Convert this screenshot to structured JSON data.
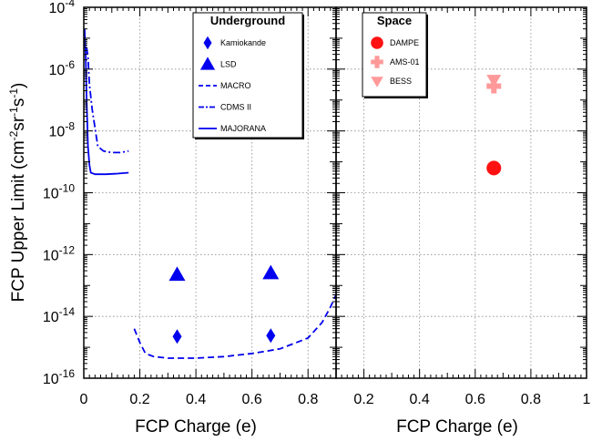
{
  "chart_data": {
    "type": "scatter",
    "ylabel_main": "FCP Upper Limit (cm",
    "ylabel_sup1": "-2",
    "ylabel_mid1": "sr",
    "ylabel_sup2": "-1",
    "ylabel_mid2": "s",
    "ylabel_sup3": "-1",
    "ylabel_end": ")",
    "y_log": true,
    "ylim_exp": [
      -16,
      -4
    ],
    "y_tick_base": "10",
    "y_tick_exponents": [
      "-4",
      "-6",
      "-8",
      "-10",
      "-12",
      "-14",
      "-16"
    ],
    "grid": true,
    "panels": [
      {
        "xlabel": "FCP Charge (e)",
        "xlim": [
          0,
          0.9
        ],
        "x_tick_labels": [
          "0",
          "0.2",
          "0.4",
          "0.6",
          "0.8"
        ],
        "legend": {
          "title": "Underground",
          "position": "top-center",
          "entries": [
            {
              "label": "Kamiokande",
              "marker": "diamond",
              "color": "#0000ee"
            },
            {
              "label": "LSD",
              "marker": "triangle-up",
              "color": "#0000ee"
            },
            {
              "label": "MACRO",
              "line": "dashed",
              "color": "#0000ee"
            },
            {
              "label": "CDMS II",
              "line": "dashdot",
              "color": "#0000ee"
            },
            {
              "label": "MAJORANA",
              "line": "solid",
              "color": "#0000ee"
            }
          ]
        },
        "series": [
          {
            "name": "Kamiokande",
            "marker": "diamond",
            "color": "#0000ee",
            "points": [
              {
                "x": 0.333,
                "y_exp": -14.65
              },
              {
                "x": 0.667,
                "y_exp": -14.62
              }
            ]
          },
          {
            "name": "LSD",
            "marker": "triangle-up",
            "color": "#0000ee",
            "points": [
              {
                "x": 0.333,
                "y_exp": -12.65
              },
              {
                "x": 0.667,
                "y_exp": -12.6
              }
            ]
          },
          {
            "name": "MACRO",
            "line": "dashed",
            "color": "#0000ee",
            "points": [
              {
                "x": 0.18,
                "y_exp": -14.4
              },
              {
                "x": 0.2,
                "y_exp": -14.85
              },
              {
                "x": 0.22,
                "y_exp": -15.2
              },
              {
                "x": 0.25,
                "y_exp": -15.3
              },
              {
                "x": 0.3,
                "y_exp": -15.35
              },
              {
                "x": 0.4,
                "y_exp": -15.35
              },
              {
                "x": 0.5,
                "y_exp": -15.3
              },
              {
                "x": 0.6,
                "y_exp": -15.2
              },
              {
                "x": 0.7,
                "y_exp": -15.05
              },
              {
                "x": 0.8,
                "y_exp": -14.7
              },
              {
                "x": 0.85,
                "y_exp": -14.2
              },
              {
                "x": 0.88,
                "y_exp": -13.7
              },
              {
                "x": 0.9,
                "y_exp": -13.3
              }
            ]
          },
          {
            "name": "CDMS II",
            "line": "dashdot",
            "color": "#0000ee",
            "points": [
              {
                "x": 0.01,
                "y_exp": -5.3
              },
              {
                "x": 0.015,
                "y_exp": -5.6
              },
              {
                "x": 0.02,
                "y_exp": -6.5
              },
              {
                "x": 0.03,
                "y_exp": -7.3
              },
              {
                "x": 0.05,
                "y_exp": -8.5
              },
              {
                "x": 0.07,
                "y_exp": -8.65
              },
              {
                "x": 0.1,
                "y_exp": -8.7
              },
              {
                "x": 0.13,
                "y_exp": -8.7
              },
              {
                "x": 0.16,
                "y_exp": -8.65
              }
            ]
          },
          {
            "name": "MAJORANA",
            "line": "solid",
            "color": "#0000ee",
            "points": [
              {
                "x": 0.003,
                "y_exp": -4.7
              },
              {
                "x": 0.007,
                "y_exp": -5.7
              },
              {
                "x": 0.01,
                "y_exp": -7.0
              },
              {
                "x": 0.015,
                "y_exp": -8.5
              },
              {
                "x": 0.02,
                "y_exp": -9.1
              },
              {
                "x": 0.025,
                "y_exp": -9.35
              },
              {
                "x": 0.04,
                "y_exp": -9.4
              },
              {
                "x": 0.08,
                "y_exp": -9.4
              },
              {
                "x": 0.12,
                "y_exp": -9.38
              },
              {
                "x": 0.16,
                "y_exp": -9.35
              }
            ]
          }
        ]
      },
      {
        "xlabel": "FCP Charge (e)",
        "xlim": [
          0.1,
          1.0
        ],
        "x_tick_labels": [
          "0.2",
          "0.4",
          "0.6",
          "0.8",
          "1"
        ],
        "legend": {
          "title": "Space",
          "position": "top-left",
          "entries": [
            {
              "label": "DAMPE",
              "marker": "circle",
              "color": "#ff1111"
            },
            {
              "label": "AMS-01",
              "marker": "cross",
              "color": "#ff9999"
            },
            {
              "label": "BESS",
              "marker": "triangle-down",
              "color": "#ff9999"
            }
          ]
        },
        "series": [
          {
            "name": "DAMPE",
            "marker": "circle",
            "color": "#ff1111",
            "points": [
              {
                "x": 0.667,
                "y_exp": -9.2
              }
            ]
          },
          {
            "name": "AMS-01",
            "marker": "cross",
            "color": "#ff9999",
            "points": [
              {
                "x": 0.667,
                "y_exp": -6.55
              }
            ]
          },
          {
            "name": "BESS",
            "marker": "triangle-down",
            "color": "#ff9999",
            "points": [
              {
                "x": 0.667,
                "y_exp": -6.35
              }
            ]
          }
        ]
      }
    ]
  }
}
